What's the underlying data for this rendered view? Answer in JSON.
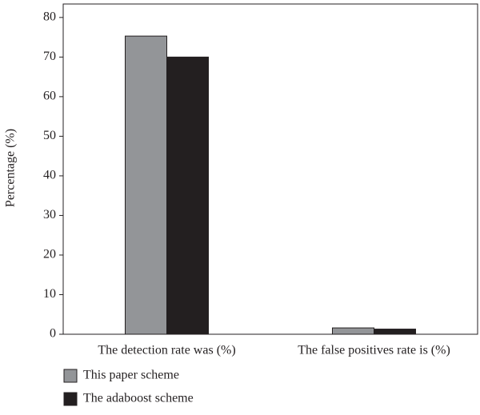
{
  "chart_data": {
    "type": "bar",
    "y_label": "Percentage (%)",
    "categories": [
      "The detection rate was (%)",
      "The false positives rate is (%)"
    ],
    "series": [
      {
        "name": "This paper scheme",
        "color": "#939598",
        "values": [
          75.3,
          1.6
        ]
      },
      {
        "name": "The adaboost scheme",
        "color": "#231f20",
        "values": [
          70,
          1.3
        ]
      }
    ],
    "ylim": [
      0,
      83.4
    ],
    "yticks": [
      0,
      10,
      20,
      30,
      40,
      50,
      60,
      70,
      80
    ],
    "grid": false
  }
}
